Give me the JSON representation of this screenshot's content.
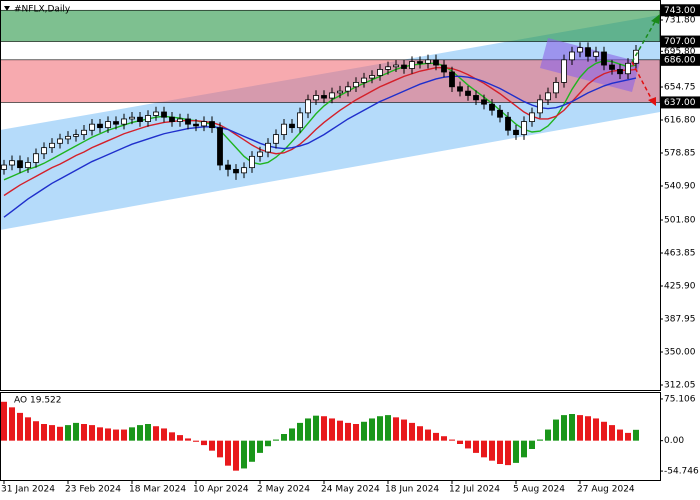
{
  "chart_data": {
    "type": "candlestick",
    "title": "#NFLX,Daily",
    "categories": [
      "31 Jan 2024",
      null,
      null,
      null,
      null,
      null,
      null,
      null,
      "23 Feb 2024",
      null,
      null,
      null,
      null,
      null,
      null,
      null,
      "18 Mar 2024",
      null,
      null,
      null,
      null,
      null,
      null,
      null,
      "10 Apr 2024",
      null,
      null,
      null,
      null,
      null,
      null,
      null,
      "2 May 2024",
      null,
      null,
      null,
      null,
      null,
      null,
      null,
      "24 May 2024",
      null,
      null,
      null,
      null,
      null,
      null,
      null,
      "18 Jun 2024",
      null,
      null,
      null,
      null,
      null,
      null,
      null,
      "12 Jul 2024",
      null,
      null,
      null,
      null,
      null,
      null,
      null,
      "5 Aug 2024",
      null,
      null,
      null,
      null,
      null,
      null,
      null,
      "27 Aug 2024",
      null,
      null,
      null,
      null,
      null,
      null,
      null
    ],
    "open": [
      560,
      565,
      570,
      562,
      568,
      578,
      585,
      590,
      595,
      598,
      600,
      605,
      612,
      608,
      615,
      612,
      618,
      620,
      615,
      622,
      626,
      620,
      615,
      618,
      612,
      610,
      615,
      608,
      565,
      560,
      556,
      562,
      575,
      580,
      590,
      600,
      612,
      608,
      625,
      640,
      645,
      642,
      648,
      650,
      655,
      660,
      665,
      668,
      675,
      678,
      680,
      676,
      684,
      682,
      686,
      680,
      672,
      655,
      650,
      645,
      640,
      635,
      628,
      620,
      605,
      600,
      615,
      625,
      640,
      648,
      660,
      686,
      695,
      700,
      690,
      695,
      680,
      675,
      670,
      682
    ],
    "high": [
      571,
      576,
      576,
      574,
      584,
      591,
      596,
      601,
      604,
      606,
      611,
      618,
      618,
      621,
      621,
      624,
      626,
      626,
      628,
      632,
      632,
      626,
      624,
      624,
      618,
      621,
      621,
      614,
      571,
      566,
      568,
      581,
      586,
      596,
      606,
      618,
      618,
      631,
      646,
      651,
      651,
      654,
      656,
      661,
      666,
      671,
      674,
      681,
      684,
      686,
      686,
      690,
      690,
      692,
      692,
      686,
      678,
      661,
      656,
      651,
      646,
      641,
      634,
      626,
      611,
      621,
      631,
      646,
      654,
      666,
      692,
      701,
      706,
      706,
      701,
      701,
      686,
      681,
      688,
      703
    ],
    "low": [
      554,
      559,
      556,
      556,
      562,
      572,
      579,
      584,
      589,
      592,
      594,
      599,
      602,
      602,
      606,
      606,
      612,
      609,
      609,
      616,
      614,
      609,
      609,
      606,
      604,
      604,
      602,
      559,
      552,
      548,
      550,
      556,
      569,
      574,
      584,
      594,
      602,
      602,
      619,
      634,
      636,
      636,
      642,
      644,
      649,
      654,
      659,
      662,
      669,
      672,
      670,
      670,
      676,
      676,
      674,
      666,
      649,
      644,
      639,
      634,
      629,
      622,
      614,
      599,
      594,
      594,
      609,
      619,
      634,
      642,
      654,
      680,
      689,
      684,
      684,
      674,
      669,
      664,
      664,
      676
    ],
    "close": [
      565,
      570,
      562,
      568,
      578,
      585,
      590,
      595,
      598,
      600,
      605,
      612,
      608,
      615,
      612,
      618,
      620,
      615,
      622,
      626,
      620,
      615,
      618,
      612,
      610,
      615,
      608,
      565,
      560,
      556,
      562,
      575,
      580,
      590,
      600,
      612,
      608,
      625,
      640,
      645,
      642,
      648,
      650,
      655,
      660,
      665,
      668,
      675,
      678,
      680,
      676,
      684,
      682,
      686,
      680,
      672,
      655,
      650,
      645,
      640,
      635,
      628,
      620,
      605,
      600,
      615,
      625,
      640,
      648,
      660,
      686,
      695,
      700,
      690,
      695,
      680,
      675,
      670,
      682,
      697
    ],
    "up_color": "#ffffff",
    "down_color": "#000000",
    "series": [
      {
        "color": "#1fb41f",
        "values": [
          548,
          552,
          556,
          560,
          563,
          567,
          572,
          577,
          582,
          587,
          592,
          597,
          601,
          605,
          608,
          611,
          614,
          616,
          618,
          620,
          621,
          620,
          619,
          617,
          616,
          614,
          612,
          605,
          595,
          585,
          575,
          568,
          566,
          568,
          574,
          582,
          592,
          602,
          613,
          624,
          633,
          640,
          645,
          650,
          655,
          659,
          663,
          667,
          671,
          675,
          678,
          680,
          681,
          682,
          682,
          679,
          673,
          665,
          657,
          650,
          643,
          636,
          628,
          620,
          612,
          606,
          603,
          604,
          610,
          620,
          635,
          652,
          666,
          676,
          682,
          685,
          684,
          681,
          678,
          680
        ]
      },
      {
        "color": "#d4202a",
        "values": [
          530,
          536,
          542,
          547,
          552,
          557,
          562,
          566,
          571,
          576,
          580,
          585,
          589,
          593,
          597,
          601,
          604,
          607,
          610,
          612,
          614,
          615,
          616,
          616,
          616,
          615,
          614,
          611,
          606,
          600,
          594,
          588,
          583,
          580,
          578,
          579,
          583,
          589,
          597,
          606,
          614,
          621,
          628,
          634,
          640,
          645,
          650,
          655,
          659,
          663,
          667,
          670,
          673,
          675,
          677,
          677,
          676,
          673,
          669,
          664,
          659,
          653,
          647,
          640,
          633,
          626,
          621,
          618,
          618,
          621,
          628,
          638,
          648,
          658,
          665,
          670,
          673,
          674,
          674,
          675
        ]
      },
      {
        "color": "#1f2fcc",
        "values": [
          505,
          512,
          519,
          526,
          532,
          538,
          544,
          549,
          554,
          559,
          564,
          569,
          573,
          577,
          581,
          585,
          589,
          592,
          595,
          598,
          601,
          603,
          605,
          607,
          608,
          609,
          609,
          608,
          606,
          602,
          598,
          594,
          590,
          587,
          585,
          584,
          585,
          587,
          590,
          595,
          600,
          606,
          612,
          618,
          623,
          628,
          633,
          638,
          642,
          646,
          650,
          654,
          658,
          661,
          664,
          666,
          667,
          667,
          666,
          664,
          661,
          657,
          653,
          648,
          643,
          638,
          634,
          631,
          630,
          631,
          634,
          638,
          643,
          648,
          652,
          656,
          659,
          661,
          663,
          665
        ]
      }
    ],
    "ylim": [
      306.3,
      754.8
    ],
    "yticks": [
      {
        "value": 731.8,
        "label": "731.80"
      },
      {
        "value": 695.8,
        "label": "695.80"
      },
      {
        "value": 654.75,
        "label": "654.75"
      },
      {
        "value": 616.8,
        "label": "616.80"
      },
      {
        "value": 578.85,
        "label": "578.85"
      },
      {
        "value": 540.9,
        "label": "540.90"
      },
      {
        "value": 501.8,
        "label": "501.80"
      },
      {
        "value": 463.85,
        "label": "463.85"
      },
      {
        "value": 425.9,
        "label": "425.90"
      },
      {
        "value": 387.95,
        "label": "387.95"
      },
      {
        "value": 350,
        "label": "350.00"
      },
      {
        "value": 312.05,
        "label": "312.05"
      }
    ],
    "levels": [
      {
        "value": 743,
        "label": "743.00"
      },
      {
        "value": 707,
        "label": "707.00"
      },
      {
        "value": 686,
        "label": "686.00"
      },
      {
        "value": 637,
        "label": "637.00"
      }
    ],
    "zones": [
      {
        "from": 0,
        "to": 1,
        "color": "rgba(40,150,70,0.6)"
      },
      {
        "from": 2,
        "to": 3,
        "color": "rgba(240,100,110,0.55)"
      }
    ],
    "indicator": {
      "name": "AO",
      "values": [
        70,
        60,
        50,
        42,
        35,
        30,
        28,
        25,
        28,
        32,
        30,
        28,
        24,
        22,
        20,
        20,
        24,
        28,
        30,
        26,
        22,
        15,
        10,
        4,
        -2,
        -8,
        -18,
        -30,
        -45,
        -54,
        -50,
        -38,
        -22,
        -10,
        2,
        12,
        22,
        32,
        40,
        45,
        44,
        40,
        36,
        32,
        30,
        34,
        40,
        44,
        46,
        42,
        38,
        32,
        26,
        20,
        14,
        8,
        2,
        -6,
        -14,
        -22,
        -30,
        -36,
        -42,
        -44,
        -40,
        -30,
        -15,
        2,
        20,
        38,
        46,
        48,
        46,
        44,
        40,
        34,
        28,
        20,
        14,
        19.522
      ],
      "rise_color": "#1a961a",
      "fall_color": "#e8191c",
      "ylim": [
        -70.8,
        85.8
      ],
      "yticks": [
        75.106,
        {
          "value": 0,
          "label": "0.00"
        },
        -54.746
      ]
    }
  }
}
